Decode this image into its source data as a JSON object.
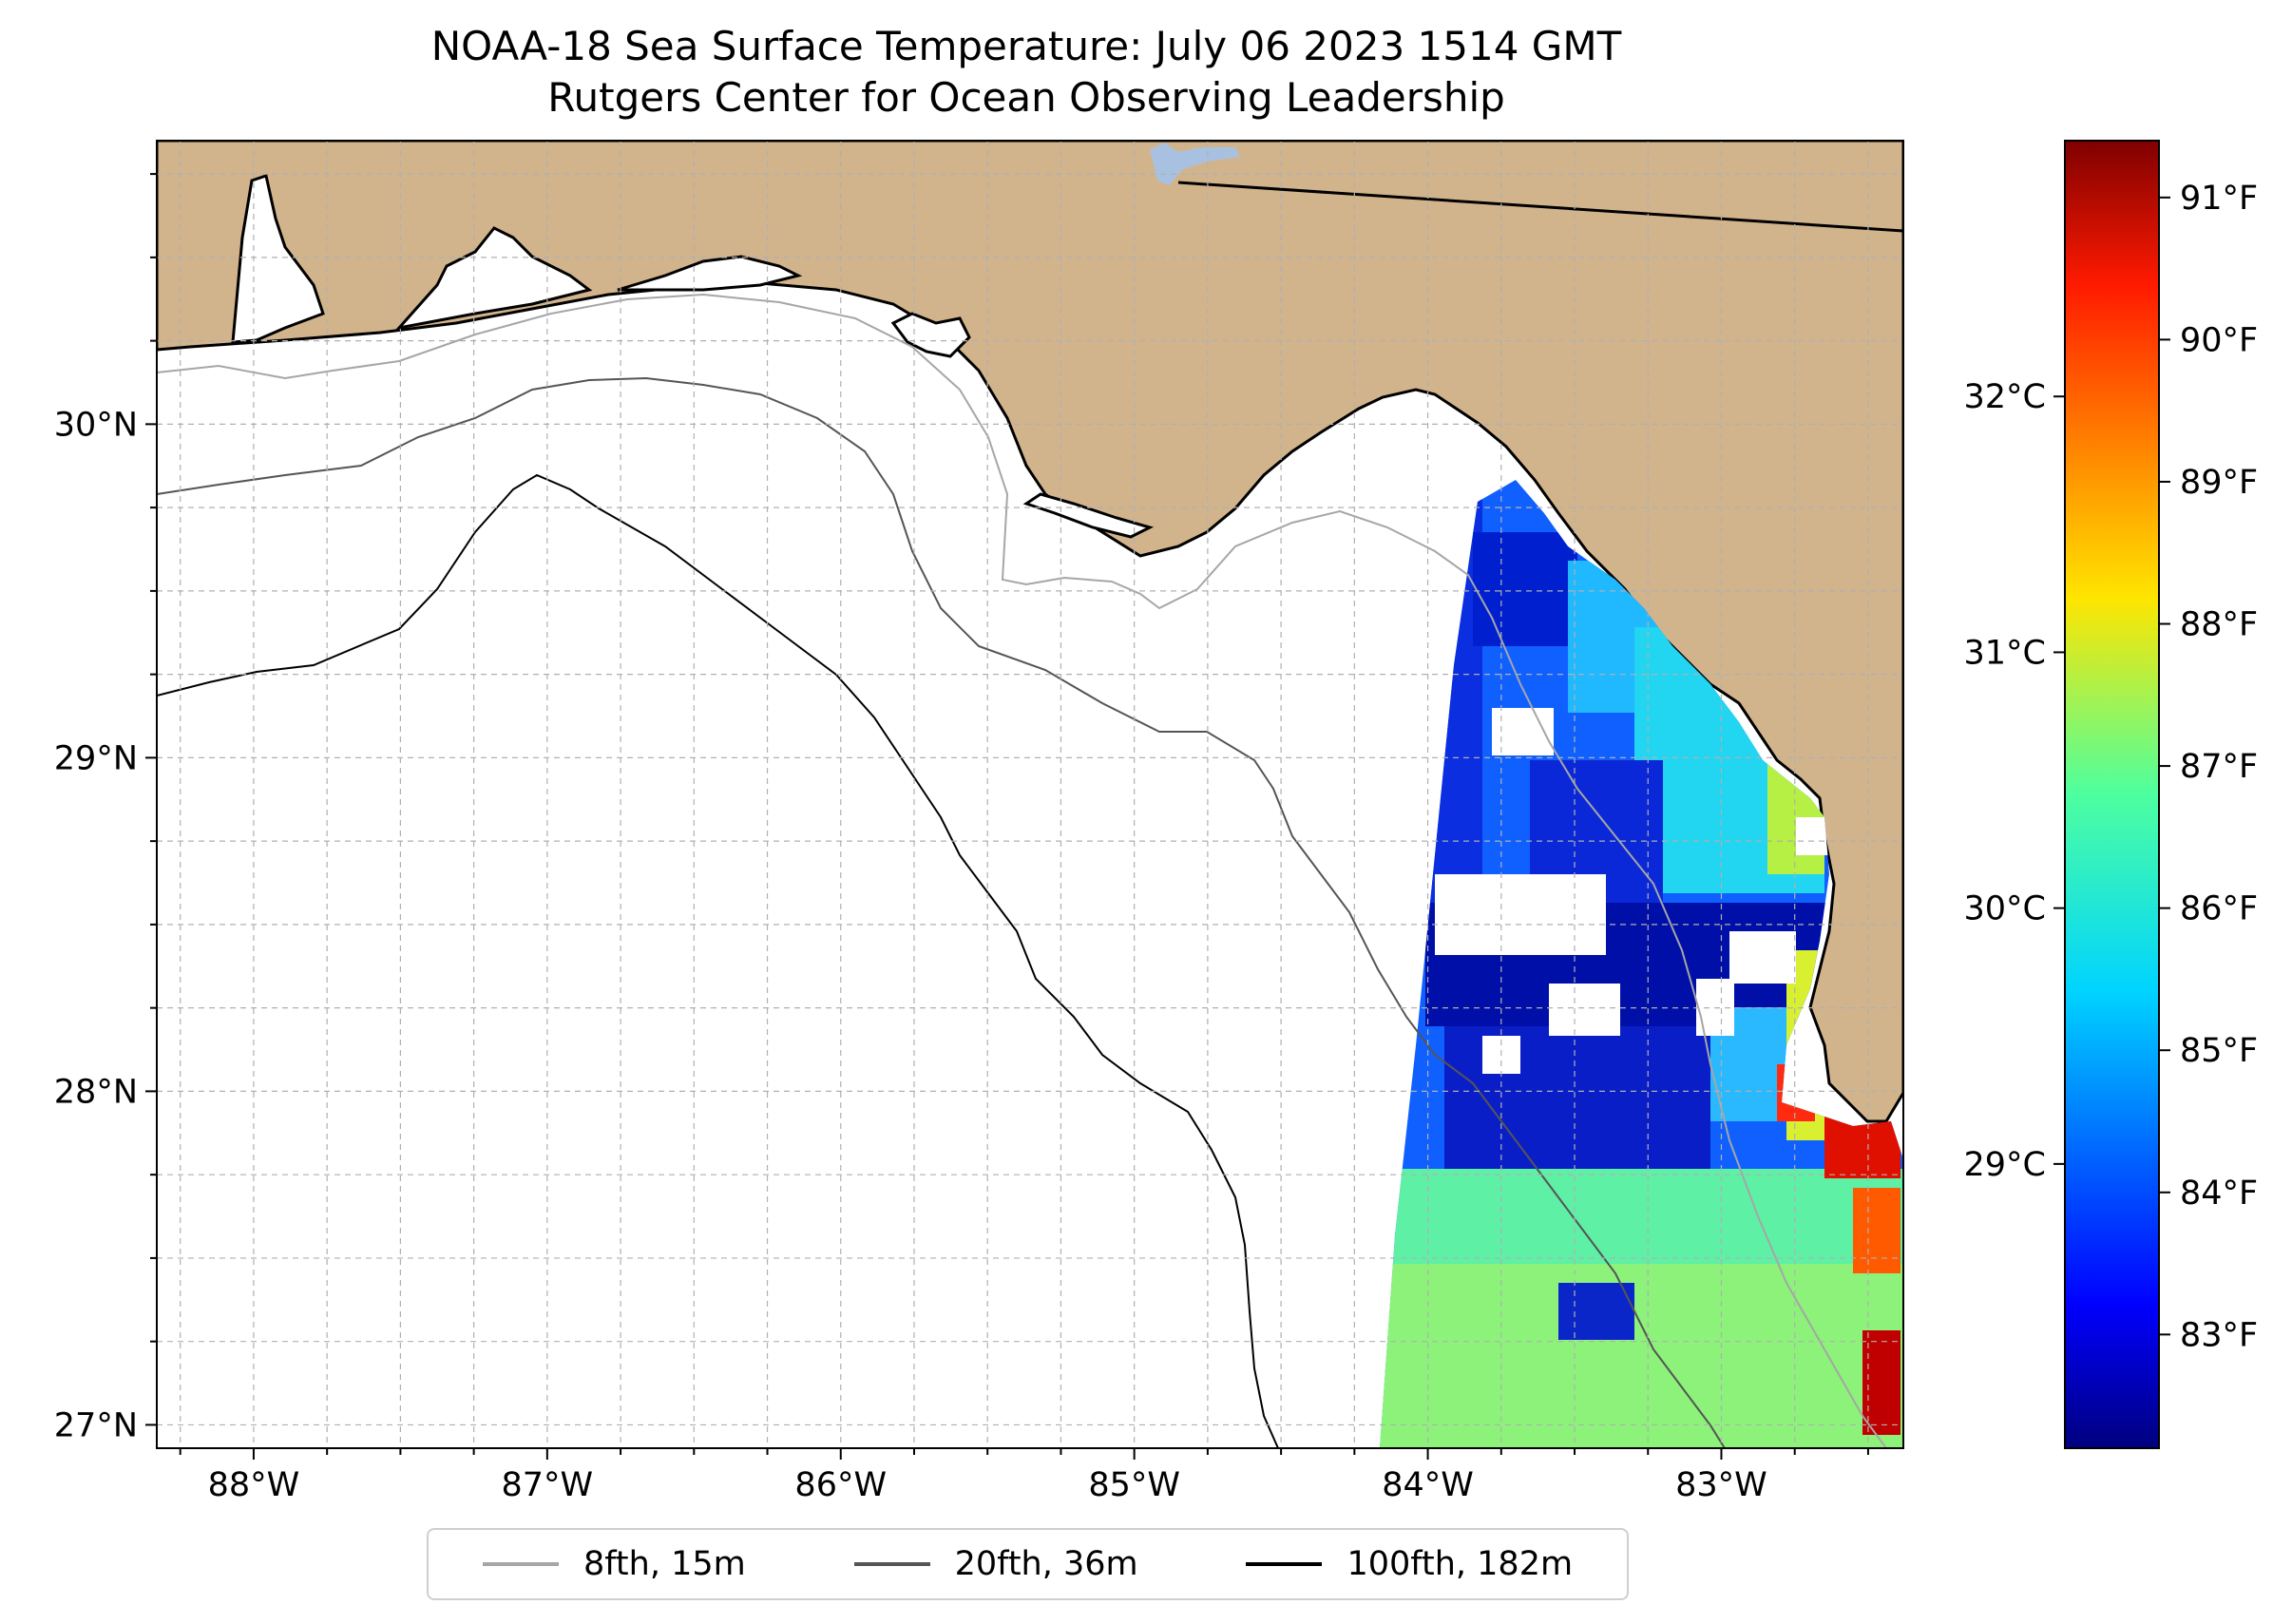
{
  "title": {
    "line1": "NOAA-18 Sea Surface Temperature: July 06 2023 1514 GMT",
    "line2": "Rutgers Center for Ocean Observing Leadership"
  },
  "axes": {
    "lon_ticks": [
      {
        "value": -88,
        "label": "88°W"
      },
      {
        "value": -87,
        "label": "87°W"
      },
      {
        "value": -86,
        "label": "86°W"
      },
      {
        "value": -85,
        "label": "85°W"
      },
      {
        "value": -84,
        "label": "84°W"
      },
      {
        "value": -83,
        "label": "83°W"
      }
    ],
    "lat_ticks": [
      {
        "value": 27,
        "label": "27°N"
      },
      {
        "value": 28,
        "label": "28°N"
      },
      {
        "value": 29,
        "label": "29°N"
      },
      {
        "value": 30,
        "label": "30°N"
      }
    ],
    "lon_range": [
      -88.33,
      -82.38
    ],
    "lat_range": [
      26.93,
      30.85
    ],
    "grid": true
  },
  "colorbar": {
    "colormap": "jet",
    "range_f": [
      82.2,
      91.4
    ],
    "celsius_ticks": [
      {
        "value": 29,
        "label": "29°C"
      },
      {
        "value": 30,
        "label": "30°C"
      },
      {
        "value": 31,
        "label": "31°C"
      },
      {
        "value": 32,
        "label": "32°C"
      }
    ],
    "fahrenheit_ticks": [
      {
        "value": 83,
        "label": "83°F"
      },
      {
        "value": 84,
        "label": "84°F"
      },
      {
        "value": 85,
        "label": "85°F"
      },
      {
        "value": 86,
        "label": "86°F"
      },
      {
        "value": 87,
        "label": "87°F"
      },
      {
        "value": 88,
        "label": "88°F"
      },
      {
        "value": 89,
        "label": "89°F"
      },
      {
        "value": 90,
        "label": "90°F"
      },
      {
        "value": 91,
        "label": "91°F"
      }
    ]
  },
  "legend": {
    "placement": "bottom-center",
    "items": [
      {
        "label": "8fth, 15m",
        "color": "#a6a6a6"
      },
      {
        "label": "20fth, 36m",
        "color": "#555555"
      },
      {
        "label": "100fth, 182m",
        "color": "#000000"
      }
    ]
  },
  "colors": {
    "land": "#d2b48c",
    "lake": "#a9c1e0",
    "grid": "#b0b0b0"
  }
}
